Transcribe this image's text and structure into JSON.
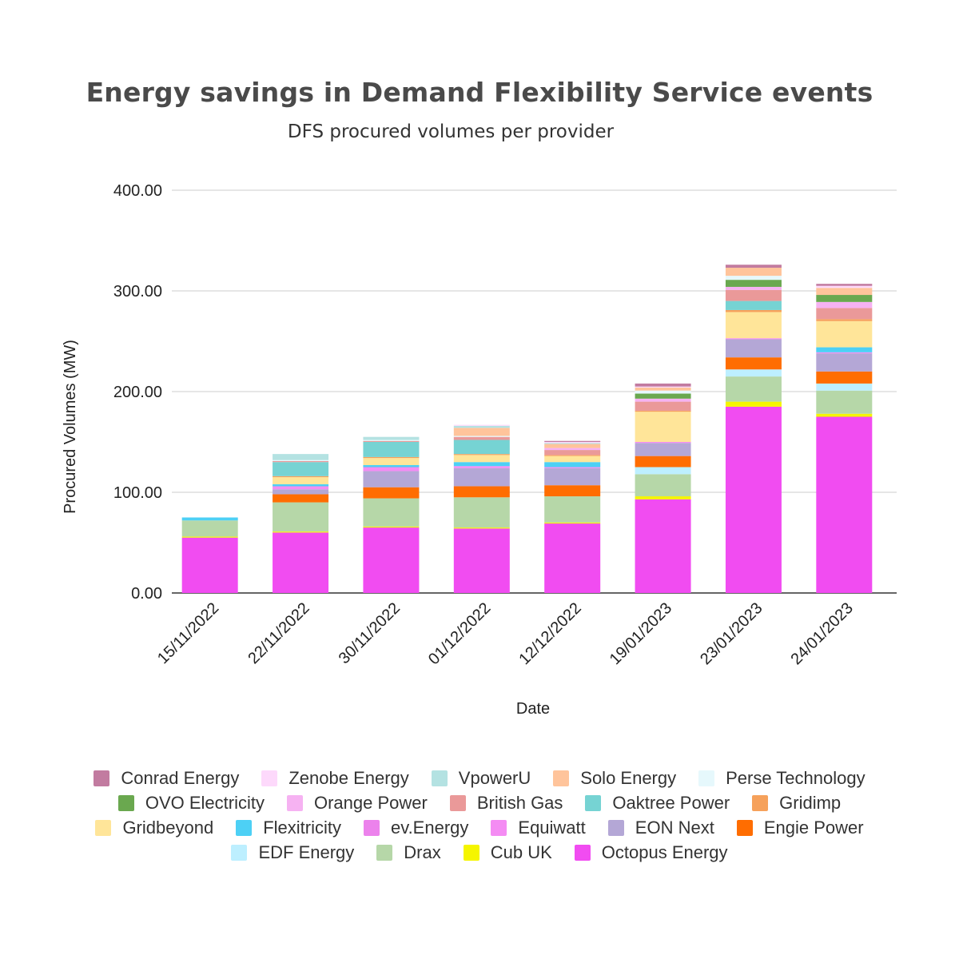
{
  "chart_data": {
    "type": "bar",
    "stacked": true,
    "title": "Energy savings in Demand Flexibility Service events",
    "subtitle": "DFS procured volumes per provider",
    "xlabel": "Date",
    "ylabel": "Procured Volumes (MW)",
    "ylim": [
      0,
      400
    ],
    "yticks": [
      "0.00",
      "100.00",
      "200.00",
      "300.00",
      "400.00"
    ],
    "grid": true,
    "legend_position": "bottom",
    "categories": [
      "15/11/2022",
      "22/11/2022",
      "30/11/2022",
      "01/12/2022",
      "12/12/2022",
      "19/01/2023",
      "23/01/2023",
      "24/01/2023"
    ],
    "series": [
      {
        "name": "Octopus Energy",
        "color": "#f14cf1",
        "values": [
          55,
          60,
          65,
          64,
          69,
          93,
          185,
          175
        ]
      },
      {
        "name": "Cub UK",
        "color": "#f5f500",
        "values": [
          1,
          1,
          1,
          1,
          1,
          3,
          5,
          3
        ]
      },
      {
        "name": "Drax",
        "color": "#b6d7a8",
        "values": [
          16,
          29,
          28,
          30,
          26,
          22,
          25,
          23
        ]
      },
      {
        "name": "EDF Energy",
        "color": "#bdefff",
        "values": [
          0,
          0,
          0,
          0,
          0,
          7,
          7,
          7
        ]
      },
      {
        "name": "Engie Power",
        "color": "#ff6d01",
        "values": [
          0,
          8,
          11,
          11,
          11,
          11,
          12,
          12
        ]
      },
      {
        "name": "EON Next",
        "color": "#b4a7d6",
        "values": [
          0,
          5,
          16,
          18,
          17,
          13,
          18,
          18
        ]
      },
      {
        "name": "Equiwatt",
        "color": "#f48cf3",
        "values": [
          0,
          2,
          3,
          2,
          1,
          1,
          1,
          1
        ]
      },
      {
        "name": "ev.Energy",
        "color": "#ec82ec",
        "values": [
          0,
          1,
          1,
          0,
          0,
          0,
          0,
          0
        ]
      },
      {
        "name": "Flexitricity",
        "color": "#4dd0f5",
        "values": [
          3,
          2,
          2,
          4,
          5,
          0,
          0,
          5
        ]
      },
      {
        "name": "Gridbeyond",
        "color": "#ffe599",
        "values": [
          0,
          7,
          7,
          7,
          6,
          30,
          26,
          26
        ]
      },
      {
        "name": "Gridimp",
        "color": "#f6a15b",
        "values": [
          0,
          1,
          1,
          1,
          1,
          1,
          2,
          2
        ]
      },
      {
        "name": "Oaktree Power",
        "color": "#76d3d3",
        "values": [
          0,
          14,
          15,
          14,
          0,
          0,
          9,
          0
        ]
      },
      {
        "name": "British Gas",
        "color": "#ea9999",
        "values": [
          0,
          1,
          1,
          3,
          5,
          9,
          11,
          11
        ]
      },
      {
        "name": "Orange Power",
        "color": "#f6b2f2",
        "values": [
          0,
          0,
          0,
          0,
          2,
          3,
          3,
          6
        ]
      },
      {
        "name": "OVO Electricity",
        "color": "#6aa84f",
        "values": [
          0,
          0,
          0,
          0,
          0,
          5,
          7,
          7
        ]
      },
      {
        "name": "Perse Technology",
        "color": "#e6f8fc",
        "values": [
          0,
          1,
          1,
          1,
          0,
          3,
          4,
          0
        ]
      },
      {
        "name": "Solo Energy",
        "color": "#ffc49b",
        "values": [
          0,
          0,
          0,
          8,
          4,
          3,
          8,
          7
        ]
      },
      {
        "name": "VpowerU",
        "color": "#b4e2e2",
        "values": [
          0,
          6,
          3,
          2,
          1,
          0,
          0,
          0
        ]
      },
      {
        "name": "Zenobe Energy",
        "color": "#fdd9fb",
        "values": [
          0,
          0,
          0,
          1,
          1,
          1,
          0,
          2
        ]
      },
      {
        "name": "Conrad Energy",
        "color": "#c27ba0",
        "values": [
          0,
          0,
          0,
          0,
          1,
          3,
          3,
          2
        ]
      }
    ],
    "legend_rows": [
      [
        "Conrad Energy",
        "Zenobe Energy",
        "VpowerU",
        "Solo Energy",
        "Perse Technology"
      ],
      [
        "OVO Electricity",
        "Orange Power",
        "British Gas",
        "Oaktree Power",
        "Gridimp"
      ],
      [
        "Gridbeyond",
        "Flexitricity",
        "ev.Energy",
        "Equiwatt",
        "EON Next",
        "Engie Power"
      ],
      [
        "EDF Energy",
        "Drax",
        "Cub UK",
        "Octopus Energy"
      ]
    ]
  }
}
